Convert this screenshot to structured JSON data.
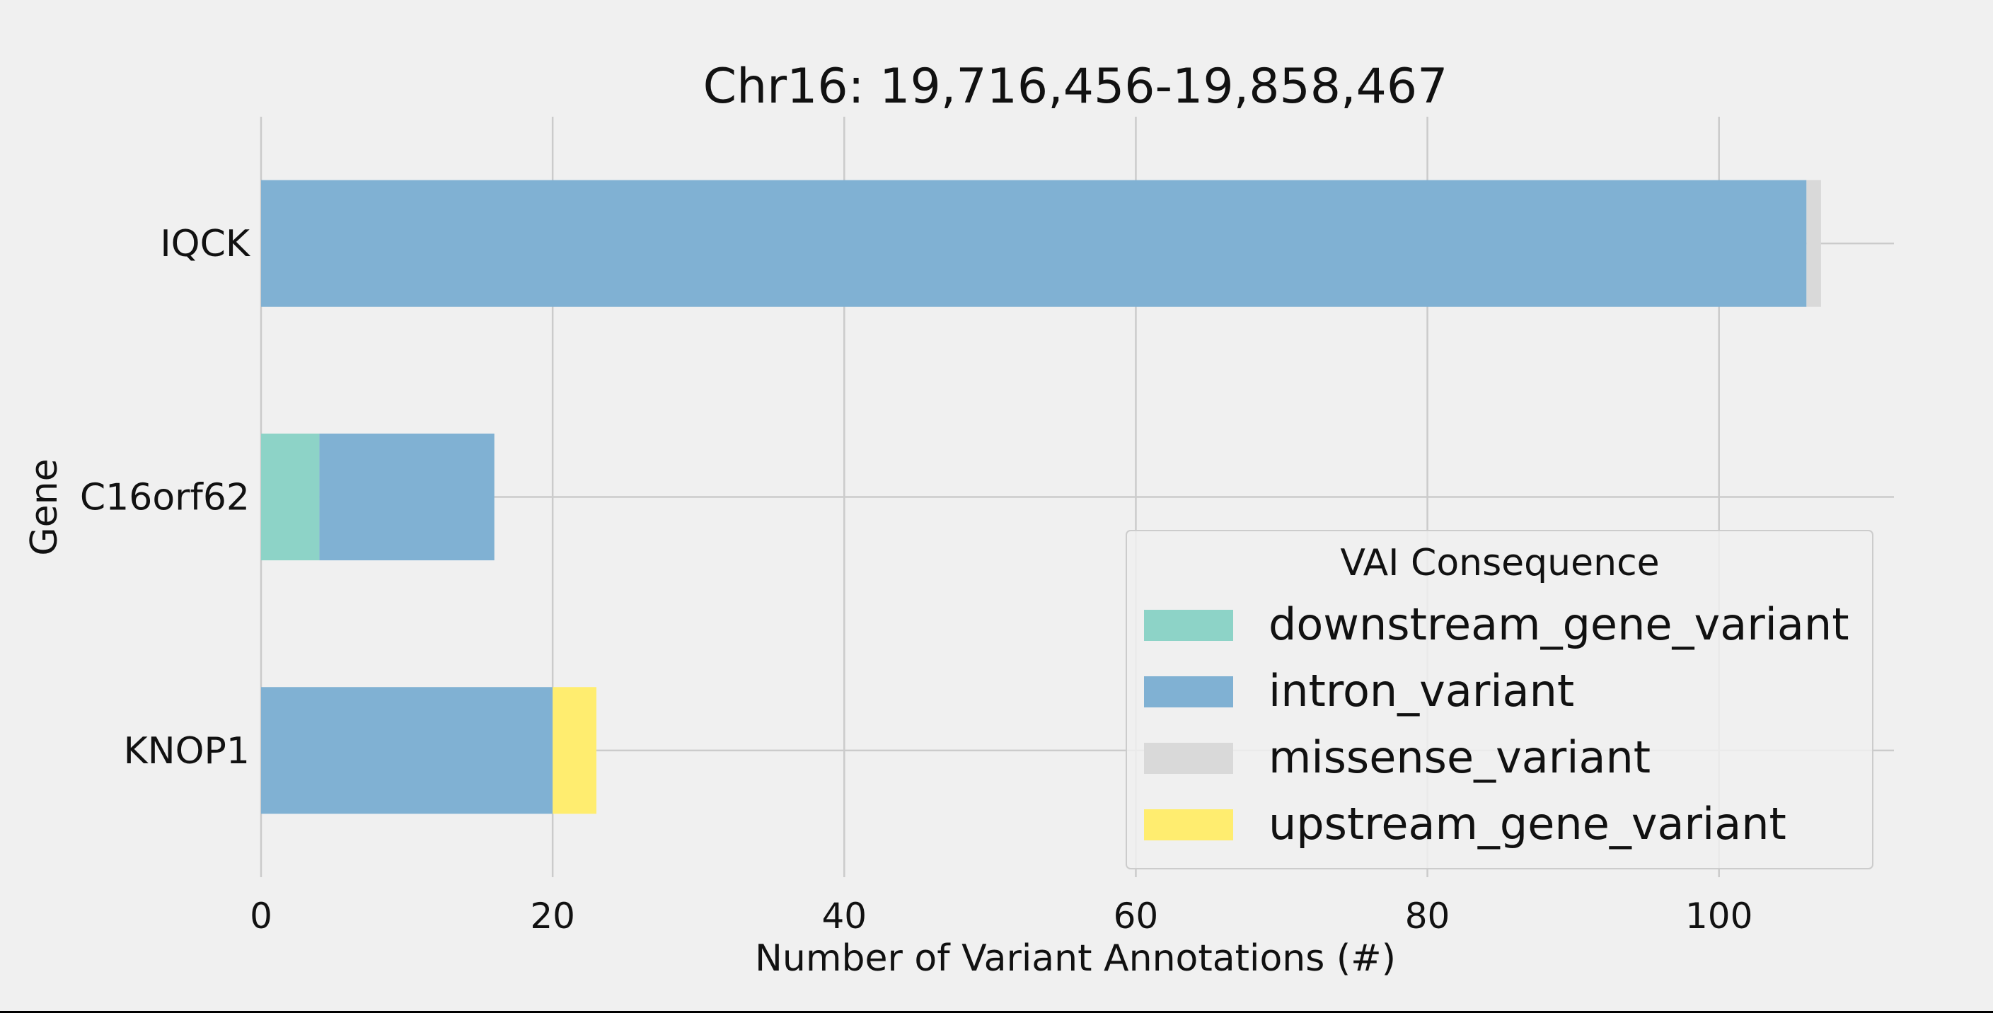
{
  "chart_data": {
    "type": "bar",
    "orientation": "horizontal",
    "stacked": true,
    "title": "Chr16: 19,716,456-19,858,467",
    "xlabel": "Number of Variant Annotations (#)",
    "ylabel": "Gene",
    "xlim": [
      0,
      112
    ],
    "x_ticks": [
      0,
      20,
      40,
      60,
      80,
      100
    ],
    "grid": true,
    "categories": [
      "IQCK",
      "C16orf62",
      "KNOP1"
    ],
    "series": [
      {
        "name": "downstream_gene_variant",
        "color": "#8dd3c7",
        "values": [
          0,
          4,
          0
        ]
      },
      {
        "name": "intron_variant",
        "color": "#80b1d3",
        "values": [
          106,
          12,
          20
        ]
      },
      {
        "name": "missense_variant",
        "color": "#d9d9d9",
        "values": [
          1,
          0,
          0
        ]
      },
      {
        "name": "upstream_gene_variant",
        "color": "#ffed6f",
        "values": [
          0,
          0,
          3
        ]
      }
    ],
    "legend": {
      "title": "VAI Consequence",
      "placement": "lower-right"
    }
  }
}
